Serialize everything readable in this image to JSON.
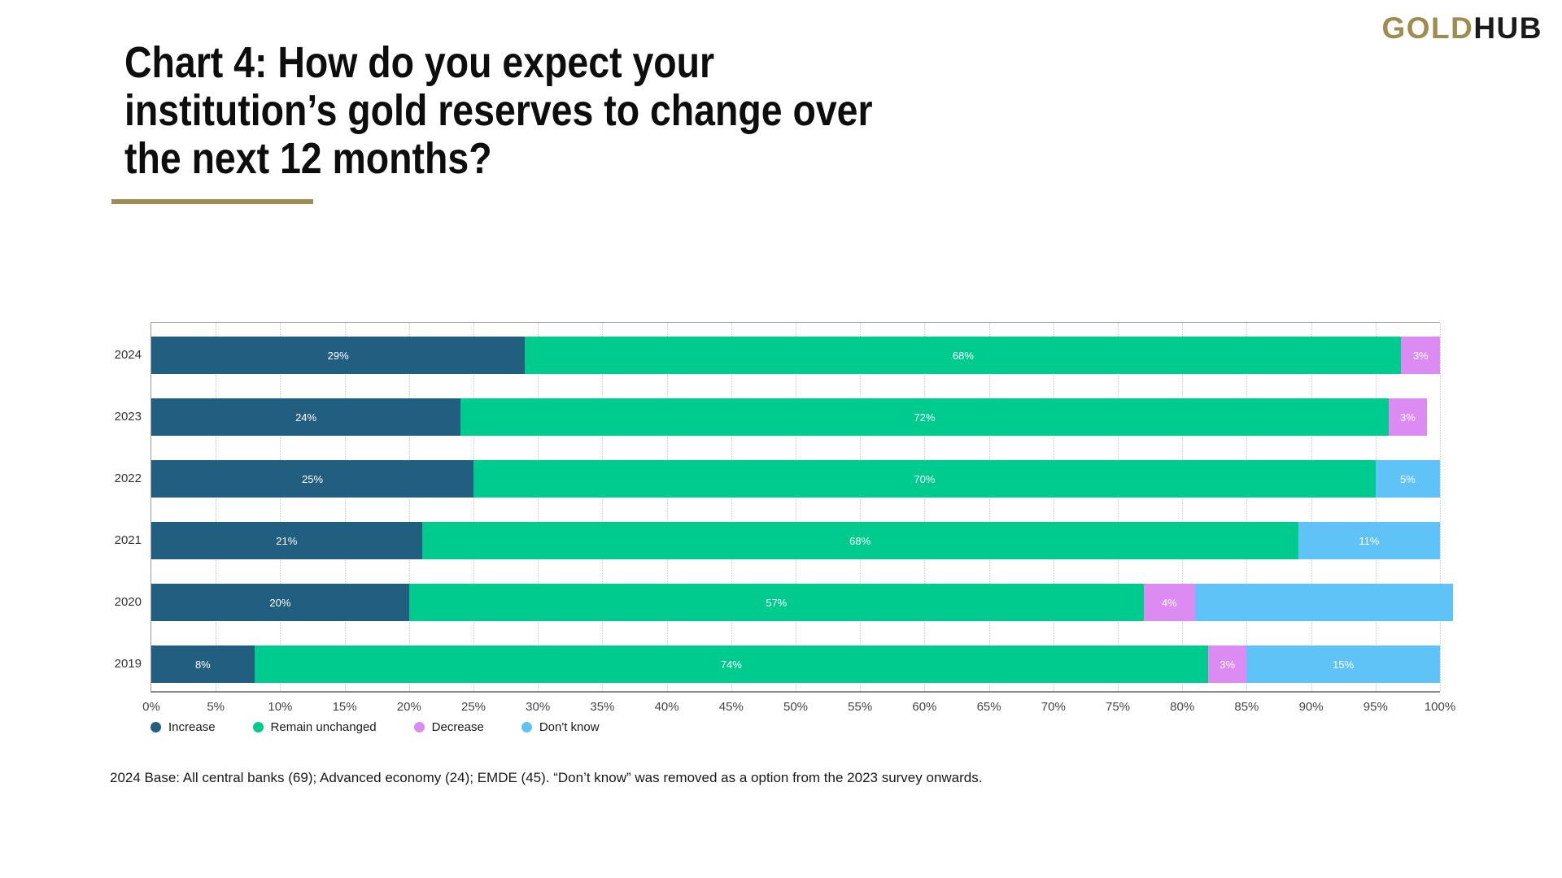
{
  "logo": {
    "gold_text": "GOLD",
    "hub_text": "HUB",
    "gold_color": "#A08B50",
    "hub_color": "#1a1a1a"
  },
  "title": {
    "lines": [
      "Chart 4: How do you expect your",
      "institution’s gold reserves to change over",
      "the next 12 months?"
    ],
    "underline_color": "#A08B50"
  },
  "footnote": "2024 Base: All central banks (69); Advanced economy (24); EMDE (45). “Don’t know” was removed as a option from the 2023 survey onwards.",
  "chart_data": {
    "type": "bar",
    "orientation": "horizontal",
    "stacked": true,
    "grid": "vertical-dotted",
    "legend_position": "bottom-left",
    "xlim": [
      0,
      100
    ],
    "x_ticks": [
      "0%",
      "5%",
      "10%",
      "15%",
      "20%",
      "25%",
      "30%",
      "35%",
      "40%",
      "45%",
      "50%",
      "55%",
      "60%",
      "65%",
      "70%",
      "75%",
      "80%",
      "85%",
      "90%",
      "95%",
      "100%"
    ],
    "categories": [
      "2024",
      "2023",
      "2022",
      "2021",
      "2020",
      "2019"
    ],
    "series": [
      {
        "name": "Increase",
        "color": "#225E80",
        "values": [
          29,
          24,
          25,
          21,
          20,
          8
        ]
      },
      {
        "name": "Remain unchanged",
        "color": "#00CB8E",
        "values": [
          68,
          72,
          70,
          68,
          57,
          74
        ]
      },
      {
        "name": "Decrease",
        "color": "#DC8BF2",
        "values": [
          3,
          3,
          0,
          0,
          4,
          3
        ]
      },
      {
        "name": "Don't know",
        "color": "#5FC3F7",
        "values": [
          0,
          0,
          5,
          11,
          20,
          15
        ]
      }
    ],
    "hidden_value_labels": [
      {
        "category": "2020",
        "series": "Don't know"
      }
    ]
  }
}
